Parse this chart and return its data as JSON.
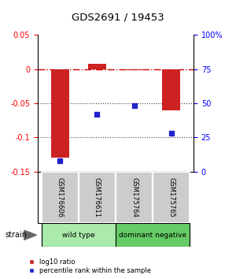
{
  "title": "GDS2691 / 19453",
  "samples": [
    "GSM176606",
    "GSM176611",
    "GSM175764",
    "GSM175765"
  ],
  "log10_ratio": [
    -0.13,
    0.008,
    -0.002,
    -0.06
  ],
  "percentile_rank": [
    8,
    42,
    48,
    28
  ],
  "groups": [
    {
      "label": "wild type",
      "samples": [
        0,
        1
      ],
      "color": "#aaeaaa"
    },
    {
      "label": "dominant negative",
      "samples": [
        2,
        3
      ],
      "color": "#66cc66"
    }
  ],
  "left_ylim": [
    -0.15,
    0.05
  ],
  "right_ylim": [
    0,
    100
  ],
  "left_yticks": [
    -0.15,
    -0.1,
    -0.05,
    0.0,
    0.05
  ],
  "right_yticks": [
    0,
    25,
    50,
    75,
    100
  ],
  "right_yticklabels": [
    "0",
    "25",
    "50",
    "75",
    "100%"
  ],
  "bar_color": "#cc2222",
  "dot_color": "#2222cc",
  "hline_color": "#cc0000",
  "dotted_line_color": "#444444",
  "bg_color": "#ffffff",
  "plot_bg": "#ffffff",
  "strain_label": "strain",
  "legend_bar_label": "log10 ratio",
  "legend_dot_label": "percentile rank within the sample",
  "sample_box_color": "#cccccc",
  "figure_border_color": "#000000"
}
